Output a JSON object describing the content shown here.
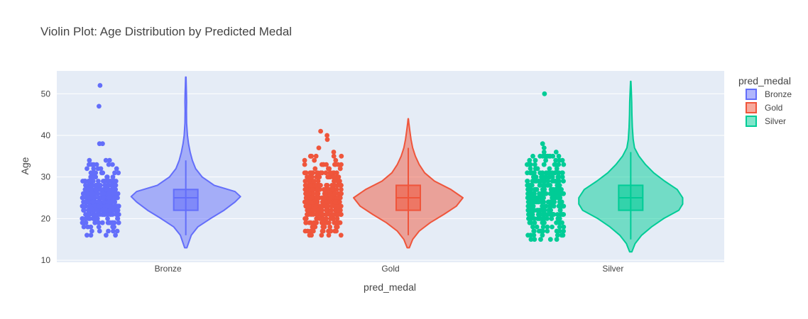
{
  "chart_data": {
    "type": "violin",
    "title": "Violin Plot: Age Distribution by Predicted Medal",
    "xlabel": "pred_medal",
    "ylabel": "Age",
    "categories": [
      "Bronze",
      "Gold",
      "Silver"
    ],
    "yticks": [
      10,
      20,
      30,
      40,
      50
    ],
    "ylim": [
      9.5,
      55.5
    ],
    "legend": {
      "title": "pred_medal",
      "placement": "top-right",
      "entries": [
        "Bronze",
        "Gold",
        "Silver"
      ]
    },
    "grid": true,
    "points": "all",
    "series": [
      {
        "name": "Bronze",
        "color": "#636efa",
        "min": 13,
        "q1": 22,
        "median": 25,
        "q3": 27,
        "max": 54,
        "upper_fence": 34,
        "lower_fence": 16,
        "outliers": [
          38,
          38,
          47,
          52
        ],
        "density": [
          [
            13,
            0.02
          ],
          [
            16,
            0.1
          ],
          [
            18,
            0.22
          ],
          [
            20,
            0.45
          ],
          [
            22,
            0.7
          ],
          [
            24,
            0.9
          ],
          [
            25.3,
            1.0
          ],
          [
            26.5,
            0.9
          ],
          [
            28,
            0.52
          ],
          [
            30,
            0.3
          ],
          [
            32,
            0.18
          ],
          [
            34,
            0.12
          ],
          [
            36,
            0.08
          ],
          [
            38,
            0.05
          ],
          [
            40,
            0.03
          ],
          [
            43,
            0.015
          ],
          [
            46,
            0.012
          ],
          [
            48,
            0.015
          ],
          [
            50,
            0.012
          ],
          [
            52,
            0.008
          ],
          [
            54,
            0.004
          ]
        ]
      },
      {
        "name": "Gold",
        "color": "#ef553b",
        "min": 13,
        "q1": 22,
        "median": 25,
        "q3": 28,
        "max": 44,
        "upper_fence": 37,
        "lower_fence": 16,
        "outliers": [
          39,
          40,
          41
        ],
        "density": [
          [
            13,
            0.02
          ],
          [
            15,
            0.08
          ],
          [
            17,
            0.2
          ],
          [
            19,
            0.4
          ],
          [
            21,
            0.65
          ],
          [
            23,
            0.88
          ],
          [
            25,
            1.0
          ],
          [
            27,
            0.78
          ],
          [
            29,
            0.48
          ],
          [
            31,
            0.3
          ],
          [
            33,
            0.2
          ],
          [
            35,
            0.13
          ],
          [
            37,
            0.08
          ],
          [
            39,
            0.05
          ],
          [
            41,
            0.03
          ],
          [
            43,
            0.01
          ],
          [
            44,
            0.003
          ]
        ]
      },
      {
        "name": "Silver",
        "color": "#00cc96",
        "min": 12,
        "q1": 22,
        "median": 25,
        "q3": 28,
        "max": 53,
        "upper_fence": 36,
        "lower_fence": 15,
        "outliers": [
          37,
          38,
          50
        ],
        "density": [
          [
            12,
            0.02
          ],
          [
            14,
            0.08
          ],
          [
            16,
            0.2
          ],
          [
            18,
            0.38
          ],
          [
            20,
            0.6
          ],
          [
            22,
            0.88
          ],
          [
            23.5,
            0.95
          ],
          [
            25,
            0.95
          ],
          [
            27,
            0.85
          ],
          [
            29,
            0.62
          ],
          [
            31,
            0.42
          ],
          [
            33,
            0.27
          ],
          [
            35,
            0.15
          ],
          [
            37,
            0.07
          ],
          [
            39,
            0.045
          ],
          [
            42,
            0.03
          ],
          [
            45,
            0.022
          ],
          [
            48,
            0.018
          ],
          [
            51,
            0.01
          ],
          [
            53,
            0.003
          ]
        ]
      }
    ]
  }
}
